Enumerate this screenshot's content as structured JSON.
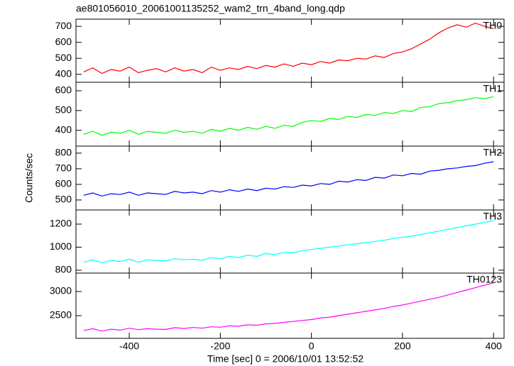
{
  "chart_data": [
    {
      "type": "line",
      "title": "ae801056010_20061001135252_wam2_trn_4band_long.qdp",
      "x": [
        -500,
        -480,
        -460,
        -440,
        -420,
        -400,
        -380,
        -360,
        -340,
        -320,
        -300,
        -280,
        -260,
        -240,
        -220,
        -200,
        -180,
        -160,
        -140,
        -120,
        -100,
        -80,
        -60,
        -40,
        -20,
        0,
        20,
        40,
        60,
        80,
        100,
        120,
        140,
        160,
        180,
        200,
        220,
        240,
        260,
        280,
        300,
        320,
        340,
        360,
        380,
        400
      ],
      "series": [
        {
          "name": "TH0",
          "color": "#ff0000",
          "values": [
            415,
            440,
            405,
            430,
            420,
            445,
            410,
            425,
            435,
            415,
            440,
            420,
            430,
            410,
            445,
            425,
            440,
            430,
            450,
            435,
            455,
            445,
            465,
            450,
            470,
            460,
            480,
            470,
            490,
            485,
            500,
            495,
            515,
            505,
            530,
            540,
            560,
            590,
            620,
            660,
            690,
            710,
            695,
            720,
            700,
            685
          ]
        }
      ],
      "xlim": [
        -517,
        423
      ],
      "xticks": [
        -400,
        -200,
        0,
        200,
        400
      ],
      "ylim": [
        350,
        745
      ],
      "yticks": [
        400,
        500,
        600,
        700
      ]
    },
    {
      "type": "line",
      "x": [
        -500,
        -480,
        -460,
        -440,
        -420,
        -400,
        -380,
        -360,
        -340,
        -320,
        -300,
        -280,
        -260,
        -240,
        -220,
        -200,
        -180,
        -160,
        -140,
        -120,
        -100,
        -80,
        -60,
        -40,
        -20,
        0,
        20,
        40,
        60,
        80,
        100,
        120,
        140,
        160,
        180,
        200,
        220,
        240,
        260,
        280,
        300,
        320,
        340,
        360,
        380,
        400
      ],
      "series": [
        {
          "name": "TH1",
          "color": "#00ff00",
          "values": [
            380,
            395,
            375,
            390,
            385,
            400,
            380,
            395,
            390,
            385,
            400,
            390,
            395,
            385,
            405,
            395,
            410,
            400,
            415,
            405,
            420,
            410,
            425,
            420,
            440,
            450,
            445,
            460,
            455,
            470,
            465,
            480,
            475,
            490,
            485,
            500,
            495,
            515,
            520,
            535,
            540,
            550,
            555,
            565,
            560,
            570
          ]
        }
      ],
      "xlim": [
        -517,
        423
      ],
      "xticks": [
        -400,
        -200,
        0,
        200,
        400
      ],
      "ylim": [
        320,
        643
      ],
      "yticks": [
        400,
        500,
        600
      ]
    },
    {
      "type": "line",
      "ylabel": "Counts/sec",
      "x": [
        -500,
        -480,
        -460,
        -440,
        -420,
        -400,
        -380,
        -360,
        -340,
        -320,
        -300,
        -280,
        -260,
        -240,
        -220,
        -200,
        -180,
        -160,
        -140,
        -120,
        -100,
        -80,
        -60,
        -40,
        -20,
        0,
        20,
        40,
        60,
        80,
        100,
        120,
        140,
        160,
        180,
        200,
        220,
        240,
        260,
        280,
        300,
        320,
        340,
        360,
        380,
        400
      ],
      "series": [
        {
          "name": "TH2",
          "color": "#0000ff",
          "values": [
            530,
            545,
            525,
            540,
            535,
            550,
            530,
            545,
            540,
            535,
            555,
            545,
            550,
            540,
            560,
            550,
            565,
            555,
            570,
            560,
            575,
            570,
            585,
            580,
            595,
            590,
            605,
            600,
            620,
            615,
            630,
            625,
            645,
            640,
            660,
            655,
            670,
            665,
            685,
            690,
            700,
            705,
            715,
            720,
            735,
            745
          ]
        }
      ],
      "xlim": [
        -517,
        423
      ],
      "xticks": [
        -400,
        -200,
        0,
        200,
        400
      ],
      "ylim": [
        436,
        845
      ],
      "yticks": [
        500,
        600,
        700,
        800
      ]
    },
    {
      "type": "line",
      "x": [
        -500,
        -480,
        -460,
        -440,
        -420,
        -400,
        -380,
        -360,
        -340,
        -320,
        -300,
        -280,
        -260,
        -240,
        -220,
        -200,
        -180,
        -160,
        -140,
        -120,
        -100,
        -80,
        -60,
        -40,
        -20,
        0,
        20,
        40,
        60,
        80,
        100,
        120,
        140,
        160,
        180,
        200,
        220,
        240,
        260,
        280,
        300,
        320,
        340,
        360,
        380,
        400
      ],
      "series": [
        {
          "name": "TH3",
          "color": "#00ffff",
          "values": [
            870,
            890,
            865,
            885,
            875,
            895,
            870,
            890,
            885,
            880,
            900,
            890,
            895,
            885,
            910,
            900,
            920,
            910,
            930,
            920,
            945,
            935,
            955,
            950,
            970,
            980,
            990,
            1000,
            1010,
            1020,
            1030,
            1040,
            1050,
            1060,
            1075,
            1085,
            1095,
            1110,
            1125,
            1140,
            1155,
            1170,
            1185,
            1200,
            1215,
            1230
          ]
        }
      ],
      "xlim": [
        -517,
        423
      ],
      "xticks": [
        -400,
        -200,
        0,
        200,
        400
      ],
      "ylim": [
        775,
        1323
      ],
      "yticks": [
        800,
        1000,
        1200
      ]
    },
    {
      "type": "line",
      "xlabel": "Time [sec] 0 = 2006/10/01 13:52:52",
      "x": [
        -500,
        -480,
        -460,
        -440,
        -420,
        -400,
        -380,
        -360,
        -340,
        -320,
        -300,
        -280,
        -260,
        -240,
        -220,
        -200,
        -180,
        -160,
        -140,
        -120,
        -100,
        -80,
        -60,
        -40,
        -20,
        0,
        20,
        40,
        60,
        80,
        100,
        120,
        140,
        160,
        180,
        200,
        220,
        240,
        260,
        280,
        300,
        320,
        340,
        360,
        380,
        400
      ],
      "series": [
        {
          "name": "TH0123",
          "color": "#ff00ff",
          "values": [
            2190,
            2230,
            2180,
            2220,
            2200,
            2240,
            2210,
            2230,
            2220,
            2215,
            2250,
            2235,
            2255,
            2240,
            2270,
            2260,
            2290,
            2280,
            2310,
            2300,
            2330,
            2340,
            2360,
            2380,
            2400,
            2420,
            2450,
            2470,
            2500,
            2530,
            2560,
            2590,
            2620,
            2650,
            2690,
            2720,
            2760,
            2800,
            2840,
            2880,
            2930,
            2980,
            3030,
            3080,
            3130,
            3180
          ]
        }
      ],
      "xlim": [
        -517,
        423
      ],
      "xticks": [
        -400,
        -200,
        0,
        200,
        400
      ],
      "ylim": [
        2030,
        3382
      ],
      "yticks": [
        2500,
        3000
      ],
      "show_xtick_labels": true
    }
  ]
}
